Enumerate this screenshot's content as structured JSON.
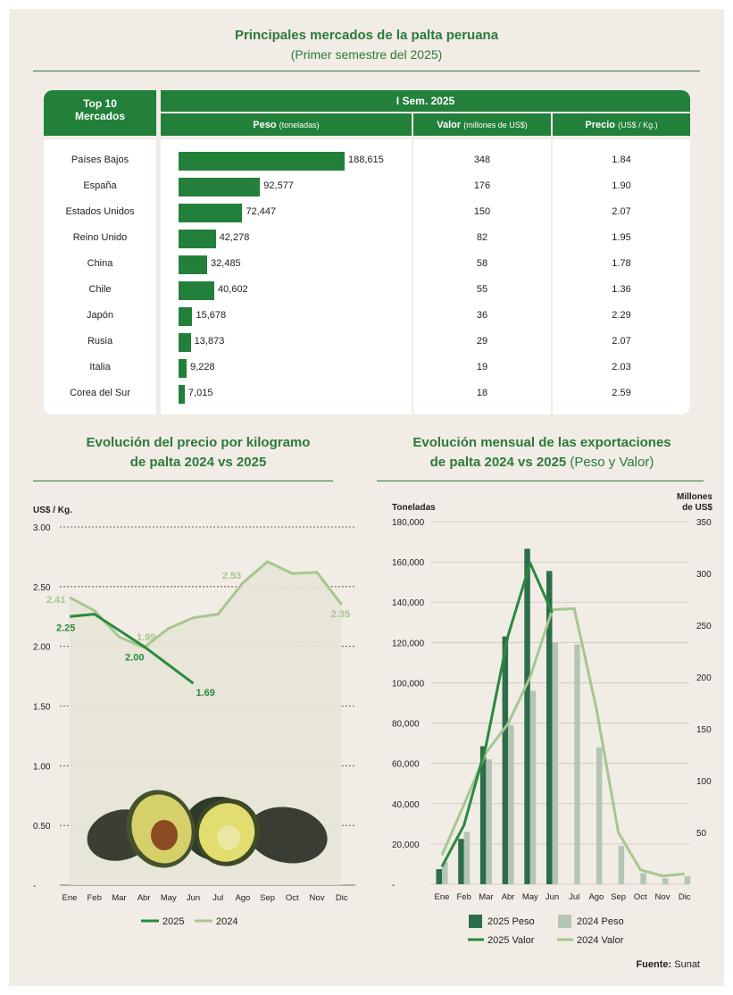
{
  "header": {
    "title": "Principales mercados de la palta peruana",
    "subtitle": "(Primer semestre del 2025)"
  },
  "table": {
    "col_markets": "Top 10 Mercados",
    "col_markets_l1": "Top 10",
    "col_markets_l2": "Mercados",
    "period": "I Sem. 2025",
    "col_weight": "Peso",
    "col_weight_unit": "(toneladas)",
    "col_value": "Valor",
    "col_value_unit": "(millones de US$)",
    "col_price": "Precio",
    "col_price_unit": "(US$ / Kg.)",
    "rows": [
      {
        "country": "Países Bajos",
        "weight": 188615,
        "weight_label": "188,615",
        "value": "348",
        "price": "1.84"
      },
      {
        "country": "España",
        "weight": 92577,
        "weight_label": "92,577",
        "value": "176",
        "price": "1.90"
      },
      {
        "country": "Estados Unidos",
        "weight": 72447,
        "weight_label": "72,447",
        "value": "150",
        "price": "2.07"
      },
      {
        "country": "Reino Unido",
        "weight": 42278,
        "weight_label": "42,278",
        "value": "82",
        "price": "1.95"
      },
      {
        "country": "China",
        "weight": 32485,
        "weight_label": "32,485",
        "value": "58",
        "price": "1.78"
      },
      {
        "country": "Chile",
        "weight": 40602,
        "weight_label": "40,602",
        "value": "55",
        "price": "1.36"
      },
      {
        "country": "Japón",
        "weight": 15678,
        "weight_label": "15,678",
        "value": "36",
        "price": "2.29"
      },
      {
        "country": "Rusia",
        "weight": 13873,
        "weight_label": "13,873",
        "value": "29",
        "price": "2.07"
      },
      {
        "country": "Italia",
        "weight": 9228,
        "weight_label": "9,228",
        "value": "19",
        "price": "2.03"
      },
      {
        "country": "Corea del Sur",
        "weight": 7015,
        "weight_label": "7,015",
        "value": "18",
        "price": "2.59"
      }
    ]
  },
  "price_chart": {
    "title_l1": "Evolución del precio por kilogramo",
    "title_l2": "de palta 2024 vs 2025"
  },
  "exports_chart": {
    "title_l1": "Evolución mensual de las exportaciones",
    "title_l2_bold": "de palta 2024 vs 2025",
    "title_l2_normal": " (Peso y Valor)"
  },
  "source_label": "Fuente:",
  "source_value": " Sunat",
  "chart_data": [
    {
      "type": "line",
      "title": "Evolución del precio por kilogramo de palta 2024 vs 2025",
      "ylabel": "US$ / Kg.",
      "ylim": [
        0,
        3.0
      ],
      "yticks": [
        "-",
        "0.50",
        "1.00",
        "1.50",
        "2.00",
        "2.50",
        "3.00"
      ],
      "categories": [
        "Ene",
        "Feb",
        "Mar",
        "Abr",
        "May",
        "Jun",
        "Jul",
        "Ago",
        "Sep",
        "Oct",
        "Nov",
        "Dic"
      ],
      "series": [
        {
          "name": "2025",
          "color": "#2a8a3d",
          "values": [
            2.25,
            2.27,
            null,
            2.0,
            null,
            1.69,
            null,
            null,
            null,
            null,
            null,
            null
          ]
        },
        {
          "name": "2024",
          "color": "#a6c78f",
          "values": [
            2.41,
            2.3,
            2.08,
            1.99,
            2.15,
            2.24,
            2.27,
            2.53,
            2.71,
            2.61,
            2.62,
            2.35
          ]
        }
      ],
      "labels": [
        {
          "series": "2025",
          "month": "Ene",
          "text": "2.25"
        },
        {
          "series": "2025",
          "month": "Abr",
          "text": "2.00"
        },
        {
          "series": "2025",
          "month": "Jun",
          "text": "1.69"
        },
        {
          "series": "2024",
          "month": "Ene",
          "text": "2.41"
        },
        {
          "series": "2024",
          "month": "Abr",
          "text": "1.99"
        },
        {
          "series": "2024",
          "month": "Ago",
          "text": "2.53"
        },
        {
          "series": "2024",
          "month": "Dic",
          "text": "2.35"
        }
      ],
      "legend_placement": "bottom"
    },
    {
      "type": "bar",
      "title": "Evolución mensual de las exportaciones de palta 2024 vs 2025 (Peso y Valor)",
      "ylabel": "Toneladas",
      "y2label_l1": "Millones",
      "y2label_l2": "de US$",
      "ylim": [
        0,
        180000
      ],
      "y2lim": [
        0,
        350
      ],
      "yticks": [
        "-",
        "20,000",
        "40,000",
        "60,000",
        "80,000",
        "100,000",
        "120,000",
        "140,000",
        "160,000",
        "180,000"
      ],
      "y2ticks": [
        "50",
        "100",
        "150",
        "200",
        "250",
        "300",
        "350"
      ],
      "categories": [
        "Ene",
        "Feb",
        "Mar",
        "Abr",
        "May",
        "Jun",
        "Jul",
        "Ago",
        "Sep",
        "Oct",
        "Nov",
        "Dic"
      ],
      "series": [
        {
          "name": "2025 Peso",
          "kind": "bar",
          "axis": "left",
          "color": "#2d6e4a",
          "values": [
            7500,
            22500,
            68500,
            123000,
            166500,
            155500,
            null,
            null,
            null,
            null,
            null,
            null
          ]
        },
        {
          "name": "2024 Peso",
          "kind": "bar",
          "axis": "left",
          "color": "#b3c6b4",
          "values": [
            11000,
            26000,
            62000,
            79000,
            96000,
            120000,
            119000,
            68000,
            19000,
            5500,
            3000,
            4000
          ]
        },
        {
          "name": "2025 Valor",
          "kind": "line",
          "axis": "right",
          "color": "#2a8a3d",
          "values": [
            17,
            57,
            134,
            240,
            310,
            262,
            null,
            null,
            null,
            null,
            null,
            null
          ]
        },
        {
          "name": "2024 Valor",
          "kind": "line",
          "axis": "right",
          "color": "#a6c78f",
          "values": [
            28,
            77,
            127,
            155,
            200,
            265,
            266,
            170,
            50,
            14,
            8,
            10
          ]
        }
      ],
      "legend_placement": "bottom"
    }
  ]
}
